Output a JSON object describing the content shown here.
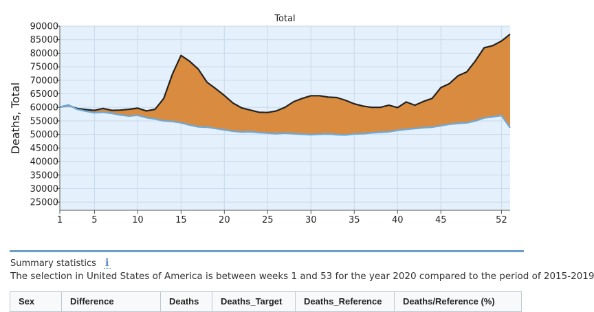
{
  "chart_data": {
    "type": "area",
    "title": "Total",
    "xlabel": "",
    "ylabel": "Deaths, Total",
    "xlim": [
      1,
      53
    ],
    "ylim": [
      22000,
      90000
    ],
    "x_ticks": [
      1,
      5,
      10,
      15,
      20,
      25,
      30,
      35,
      40,
      45,
      52
    ],
    "y_ticks": [
      25000,
      30000,
      35000,
      40000,
      45000,
      50000,
      55000,
      60000,
      65000,
      70000,
      75000,
      80000,
      85000,
      90000
    ],
    "grid": true,
    "legend": "none",
    "x": [
      1,
      2,
      3,
      4,
      5,
      6,
      7,
      8,
      9,
      10,
      11,
      12,
      13,
      14,
      15,
      16,
      17,
      18,
      19,
      20,
      21,
      22,
      23,
      24,
      25,
      26,
      27,
      28,
      29,
      30,
      31,
      32,
      33,
      34,
      35,
      36,
      37,
      38,
      39,
      40,
      41,
      42,
      43,
      44,
      45,
      46,
      47,
      48,
      49,
      50,
      51,
      52,
      53
    ],
    "series": [
      {
        "values": [
          60100,
          60700,
          59600,
          59200,
          58900,
          59600,
          58900,
          59000,
          59300,
          59700,
          58700,
          59300,
          63300,
          72300,
          79200,
          77000,
          74100,
          69300,
          66900,
          64400,
          61600,
          59800,
          59000,
          58200,
          58100,
          58700,
          60000,
          62100,
          63300,
          64300,
          64300,
          63800,
          63600,
          62600,
          61300,
          60500,
          60000,
          60000,
          60800,
          59900,
          62000,
          60800,
          62200,
          63300,
          67300,
          68800,
          71700,
          73100,
          77200,
          82000,
          82800,
          84500,
          87000
        ],
        "color": "#222222"
      },
      {
        "values": [
          60100,
          60900,
          59300,
          58600,
          58000,
          58200,
          57800,
          57200,
          56800,
          57100,
          56200,
          55700,
          55000,
          54800,
          54300,
          53500,
          52800,
          52700,
          52200,
          51700,
          51200,
          50900,
          51000,
          50700,
          50500,
          50300,
          50500,
          50300,
          50100,
          49900,
          50100,
          50200,
          49900,
          49800,
          50200,
          50300,
          50600,
          50800,
          51000,
          51500,
          51900,
          52200,
          52500,
          52700,
          53200,
          53800,
          54100,
          54300,
          55000,
          56100,
          56500,
          57000,
          52500
        ],
        "color": "#6fa8d6"
      }
    ],
    "fill_between_color": "#d98c3f",
    "background_color": "#e4f0fb"
  },
  "summary": {
    "title": "Summary statistics",
    "info_icon": "info-icon",
    "info_glyph": "i",
    "selection_text": "The selection in United States of America is between weeks 1 and 53 for the year 2020 compared to the period of 2015-2019"
  },
  "table": {
    "headers": [
      "Sex",
      "Difference",
      "Deaths",
      "Deaths_Target",
      "Deaths_Reference",
      "Deaths/Reference (%)"
    ]
  }
}
